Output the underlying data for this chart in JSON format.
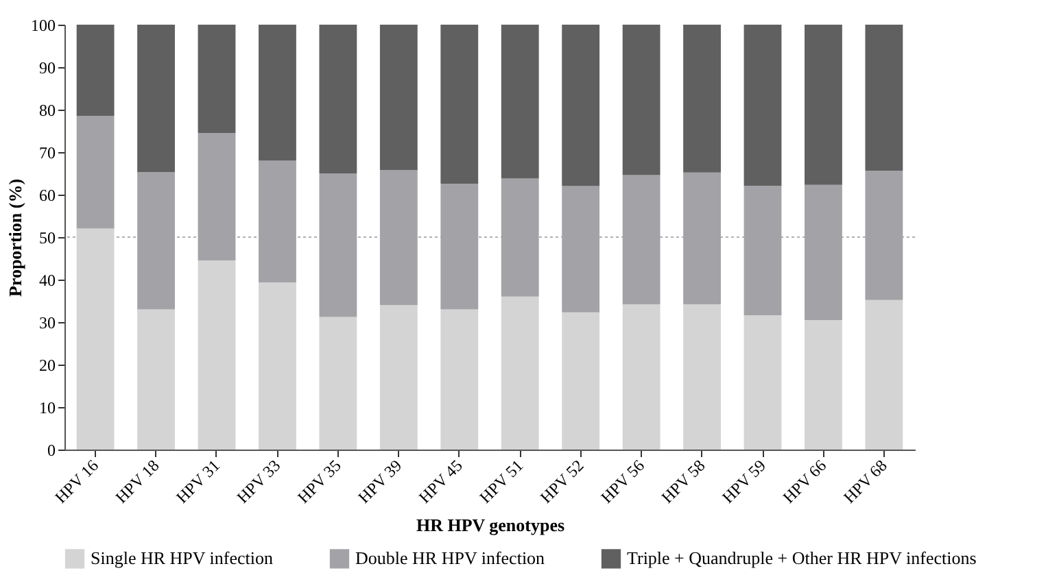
{
  "chart_data": {
    "type": "bar",
    "stacked": true,
    "xlabel": "HR HPV genotypes",
    "ylabel": "Proportion (%)",
    "categories": [
      "HPV 16",
      "HPV 18",
      "HPV 31",
      "HPV 33",
      "HPV 35",
      "HPV 39",
      "HPV 45",
      "HPV 51",
      "HPV 52",
      "HPV 56",
      "HPV 58",
      "HPV 59",
      "HPV 66",
      "HPV 68"
    ],
    "series": [
      {
        "name": "Single HR HPV infection",
        "color": "#d4d4d4",
        "values": [
          52,
          33,
          44.5,
          39.3,
          31.2,
          34,
          33,
          36,
          32.3,
          34.2,
          34.2,
          31.6,
          30.5,
          35.2
        ]
      },
      {
        "name": "Double HR HPV infection",
        "color": "#a3a2a6",
        "values": [
          26.5,
          32.3,
          30,
          28.7,
          33.8,
          31.8,
          29.6,
          27.8,
          29.7,
          30.4,
          31,
          30.5,
          31.8,
          30.4
        ]
      },
      {
        "name": "Triple + Quandruple + Other HR HPV infections",
        "color": "#606060",
        "values": [
          21.5,
          34.7,
          25.5,
          32,
          35,
          34.2,
          37.4,
          36.2,
          38,
          35.4,
          34.8,
          37.9,
          37.7,
          34.4
        ]
      }
    ],
    "ylim": [
      0,
      100
    ],
    "yticks": [
      0,
      10,
      20,
      30,
      40,
      50,
      60,
      70,
      80,
      90,
      100
    ],
    "ref_lines": [
      {
        "axis": "y",
        "value": 50,
        "color": "#b0b0b0",
        "line_style": "dotted"
      }
    ],
    "grid": false,
    "legend": "bottom"
  }
}
